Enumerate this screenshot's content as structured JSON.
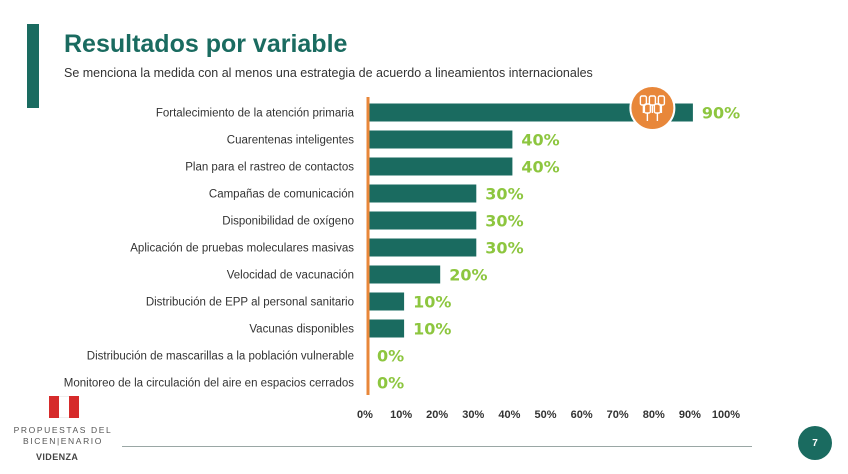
{
  "header": {
    "title": "Resultados por variable",
    "subtitle": "Se menciona la medida con al menos una estrategia de acuerdo a lineamientos internacionales"
  },
  "colors": {
    "bar": "#1a6b60",
    "value_label": "#8dc63f",
    "axis": "#e8873a",
    "icon_bg": "#e8873a"
  },
  "chart_data": {
    "type": "bar",
    "orientation": "horizontal",
    "title": "Resultados por variable",
    "xlabel": "",
    "ylabel": "",
    "xlim": [
      0,
      100
    ],
    "x_ticks": [
      "0%",
      "10%",
      "20%",
      "30%",
      "40%",
      "50%",
      "60%",
      "70%",
      "80%",
      "90%",
      "100%"
    ],
    "categories": [
      "Fortalecimiento de la atención primaria",
      "Cuarentenas inteligentes",
      "Plan para el rastreo de contactos",
      "Campañas de comunicación",
      "Disponibilidad de oxígeno",
      "Aplicación de pruebas moleculares masivas",
      "Velocidad de vacunación",
      "Distribución de EPP al personal sanitario",
      "Vacunas disponibles",
      "Distribución de mascarillas a la población vulnerable",
      "Monitoreo de la circulación del aire en espacios cerrados"
    ],
    "values": [
      90,
      40,
      40,
      30,
      30,
      30,
      20,
      10,
      10,
      0,
      0
    ],
    "value_labels": [
      "90%",
      "40%",
      "40%",
      "30%",
      "30%",
      "30%",
      "20%",
      "10%",
      "10%",
      "0%",
      "0%"
    ],
    "grid": false
  },
  "icons": {
    "highlight": "raised-hands-icon"
  },
  "footer": {
    "logo_line1": "PROPUESTAS DEL",
    "logo_line2": "BICEN|ENARIO",
    "logo_sub": "VIDENZA",
    "page_number": "7"
  }
}
